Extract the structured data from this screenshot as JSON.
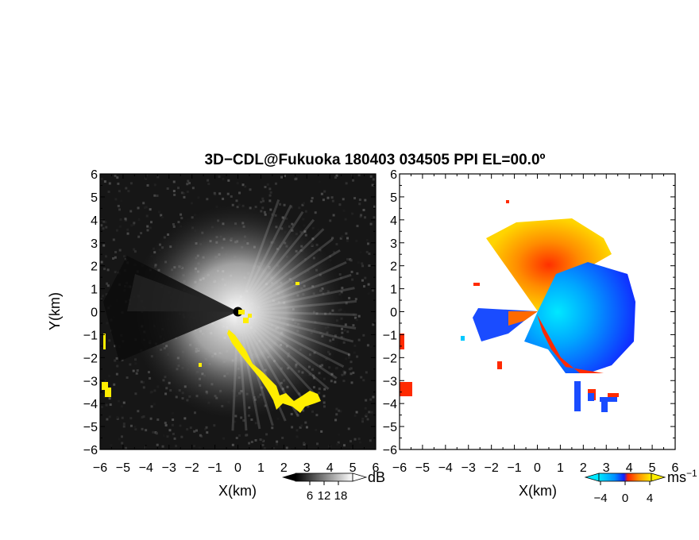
{
  "chart_data": {
    "title": "3D−CDL@Fukuoka 180403 034505 PPI EL=00.0º",
    "panels": [
      {
        "type": "heatmap",
        "quantity": "reflectivity-like backscatter",
        "xlabel": "X(km)",
        "ylabel": "Y(km)",
        "xlim": [
          -6,
          6
        ],
        "ylim": [
          -6,
          6
        ],
        "xticks": [
          "−6",
          "−5",
          "−4",
          "−3",
          "−2",
          "−1",
          "0",
          "1",
          "2",
          "3",
          "4",
          "5",
          "6"
        ],
        "yticks": [
          "6",
          "5",
          "4",
          "3",
          "2",
          "1",
          "0",
          "−1",
          "−2",
          "−3",
          "−4",
          "−5",
          "−6"
        ],
        "colorscale": "grayscale",
        "overlay_color": "#ffee00",
        "colorbar": {
          "unit": "dB",
          "ticks": [
            "6",
            "12",
            "18"
          ],
          "range": [
            0,
            24
          ]
        }
      },
      {
        "type": "heatmap",
        "quantity": "radial velocity",
        "xlabel": "X(km)",
        "xlim": [
          -6,
          6
        ],
        "ylim": [
          -6,
          6
        ],
        "xticks": [
          "−6",
          "−5",
          "−4",
          "−3",
          "−2",
          "−1",
          "0",
          "1",
          "2",
          "3",
          "4",
          "5",
          "6"
        ],
        "yticks": [
          "6",
          "5",
          "4",
          "3",
          "2",
          "1",
          "0",
          "−1",
          "−2",
          "−3",
          "−4",
          "−5",
          "−6"
        ],
        "colorscale": "cyan-blue-red-orange-yellow",
        "colorbar": {
          "unit": "ms",
          "unit_exponent": "−1",
          "ticks": [
            "−4",
            "0",
            "4"
          ],
          "range": [
            -6,
            6
          ]
        }
      }
    ]
  }
}
